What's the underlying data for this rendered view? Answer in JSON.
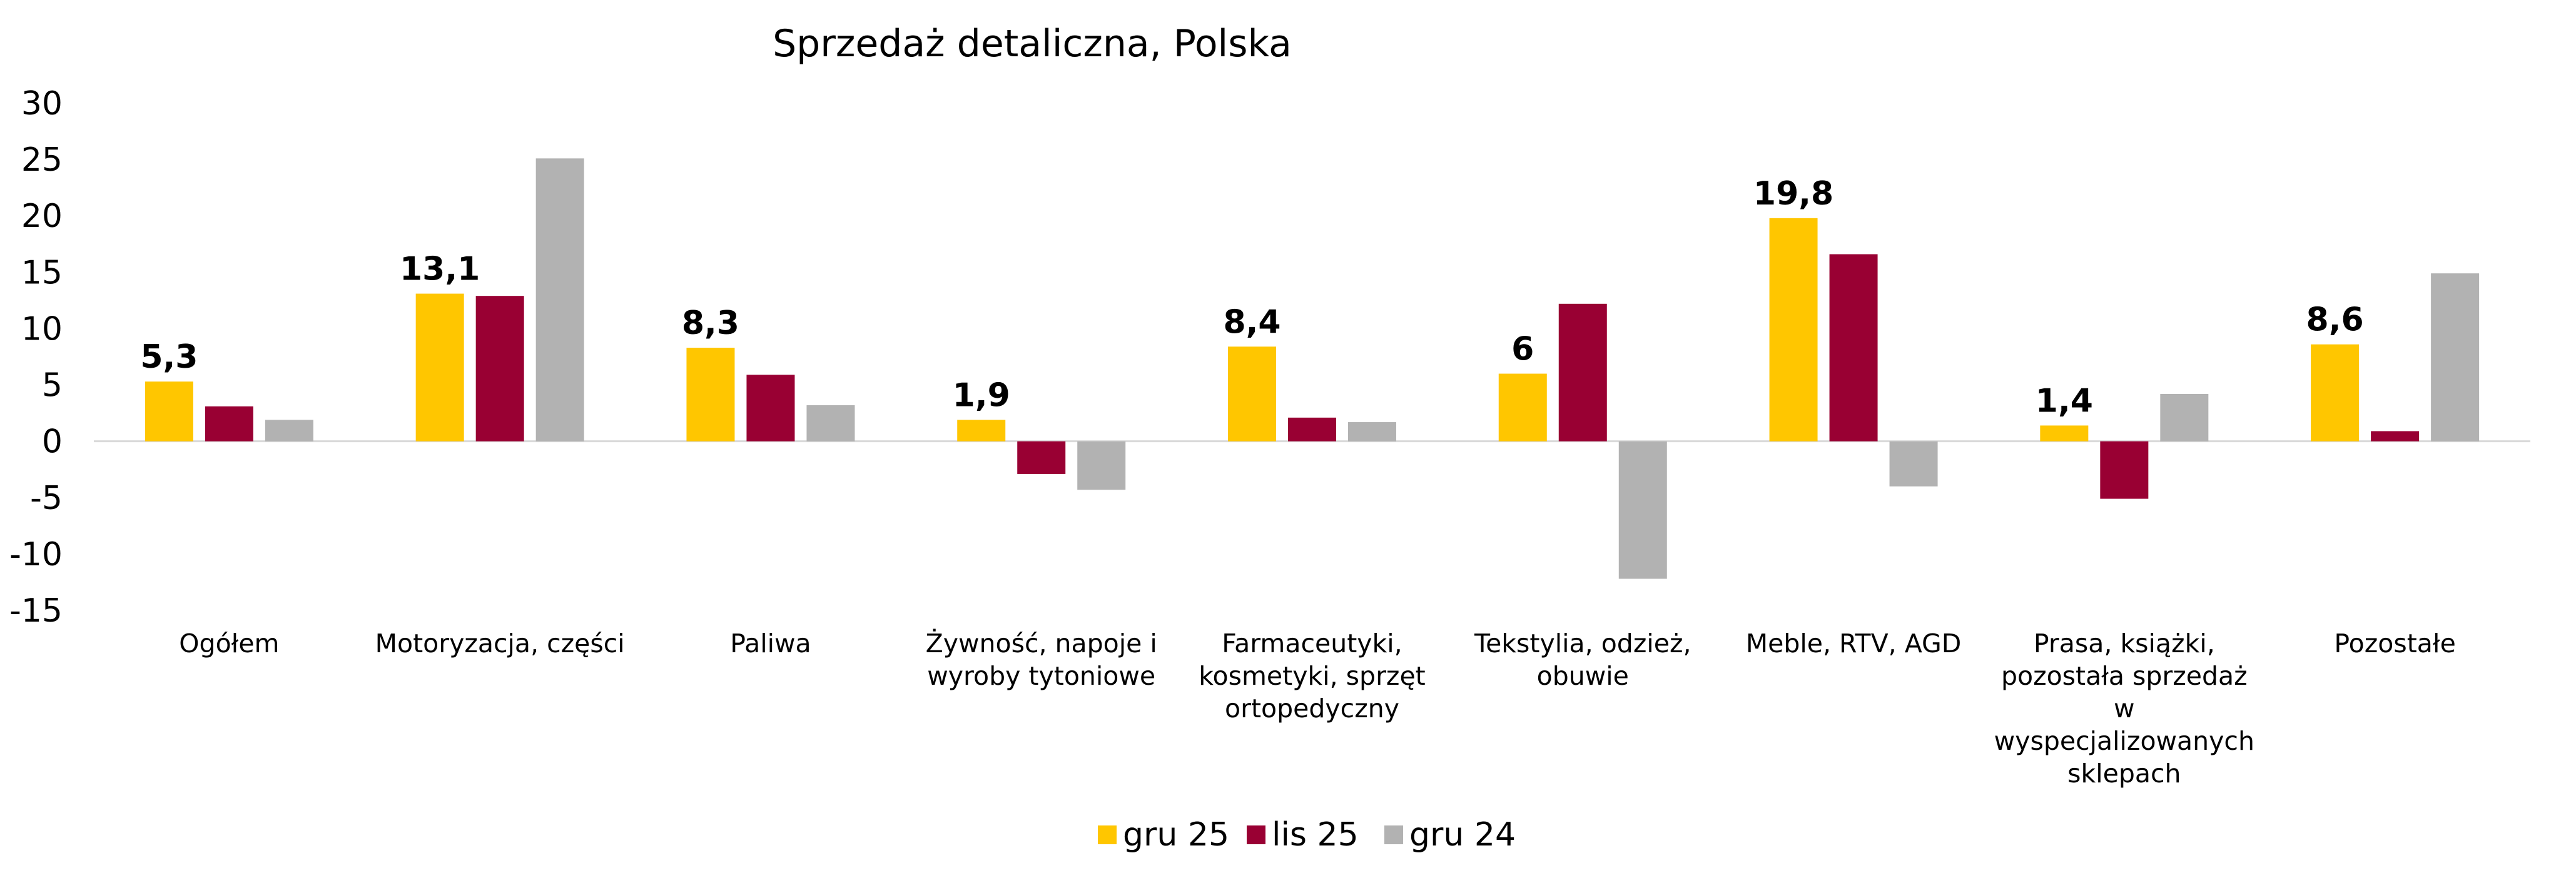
{
  "chart_data": {
    "type": "bar",
    "title": "Sprzedaż detaliczna, Polska",
    "xlabel": "",
    "ylabel": "",
    "ylim": [
      -15,
      30
    ],
    "yticks": [
      30,
      25,
      20,
      15,
      10,
      5,
      0,
      -5,
      -10,
      -15
    ],
    "grid": false,
    "legend_position": "bottom",
    "categories": [
      [
        "Ogółem"
      ],
      [
        "Motoryzacja, części"
      ],
      [
        "Paliwa"
      ],
      [
        "Żywność, napoje i",
        "wyroby tytoniowe"
      ],
      [
        "Farmaceutyki,",
        "kosmetyki, sprzęt",
        "ortopedyczny"
      ],
      [
        "Tekstylia, odzież,",
        "obuwie"
      ],
      [
        "Meble, RTV, AGD"
      ],
      [
        "Prasa, książki,",
        "pozostała sprzedaż",
        "w",
        "wyspecjalizowanych",
        "sklepach"
      ],
      [
        "Pozostałe"
      ]
    ],
    "series": [
      {
        "name": "gru 25",
        "color": "#FFC600",
        "values": [
          5.3,
          13.1,
          8.3,
          1.9,
          8.4,
          6.0,
          19.8,
          1.4,
          8.6
        ],
        "data_labels": [
          "5,3",
          "13,1",
          "8,3",
          "1,9",
          "8,4",
          "6",
          "19,8",
          "1,4",
          "8,6"
        ]
      },
      {
        "name": "lis 25",
        "color": "#990033",
        "values": [
          3.1,
          12.9,
          5.9,
          -2.9,
          2.1,
          12.2,
          16.6,
          -5.1,
          0.9
        ]
      },
      {
        "name": "gru 24",
        "color": "#B2B2B2",
        "values": [
          1.9,
          25.1,
          3.2,
          -4.3,
          1.7,
          -12.2,
          -4.0,
          4.2,
          14.9
        ]
      }
    ]
  }
}
